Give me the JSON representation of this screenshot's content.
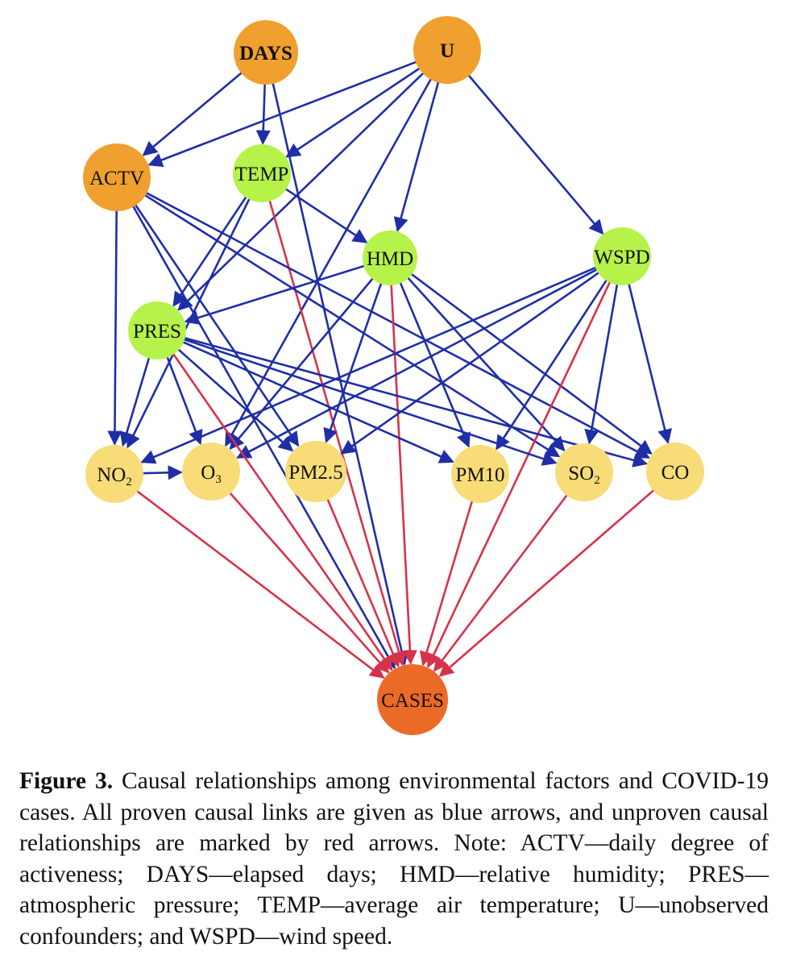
{
  "nodes": [
    {
      "id": "DAYS",
      "label": "DAYS",
      "fill": "#F0A02E",
      "bold": true
    },
    {
      "id": "U",
      "label": "U",
      "fill": "#F0A02E",
      "bold": true
    },
    {
      "id": "ACTV",
      "label": "ACTV",
      "fill": "#F0A02E",
      "bold": false
    },
    {
      "id": "TEMP",
      "label": "TEMP",
      "fill": "#B6F24A",
      "bold": false
    },
    {
      "id": "HMD",
      "label": "HMD",
      "fill": "#B6F24A",
      "bold": false
    },
    {
      "id": "WSPD",
      "label": "WSPD",
      "fill": "#B6F24A",
      "bold": false
    },
    {
      "id": "PRES",
      "label": "PRES",
      "fill": "#B6F24A",
      "bold": false
    },
    {
      "id": "NO2",
      "label": "NO",
      "sub": "2",
      "fill": "#F8DC78",
      "bold": false
    },
    {
      "id": "O3",
      "label": "O",
      "sub": "3",
      "fill": "#F8DC78",
      "bold": false
    },
    {
      "id": "PM25",
      "label": "PM2.5",
      "fill": "#F8DC78",
      "bold": false
    },
    {
      "id": "PM10",
      "label": "PM10",
      "fill": "#F8DC78",
      "bold": false
    },
    {
      "id": "SO2",
      "label": "SO",
      "sub": "2",
      "fill": "#F8DC78",
      "bold": false
    },
    {
      "id": "CO",
      "label": "CO",
      "fill": "#F8DC78",
      "bold": false
    },
    {
      "id": "CASES",
      "label": "CASES",
      "fill": "#EC6A28",
      "bold": false
    }
  ],
  "edges": [
    {
      "from": "DAYS",
      "to": "ACTV",
      "type": "proven"
    },
    {
      "from": "DAYS",
      "to": "TEMP",
      "type": "proven"
    },
    {
      "from": "DAYS",
      "to": "CASES",
      "type": "proven"
    },
    {
      "from": "U",
      "to": "ACTV",
      "type": "proven"
    },
    {
      "from": "U",
      "to": "TEMP",
      "type": "proven"
    },
    {
      "from": "U",
      "to": "HMD",
      "type": "proven"
    },
    {
      "from": "U",
      "to": "WSPD",
      "type": "proven"
    },
    {
      "from": "U",
      "to": "PRES",
      "type": "proven"
    },
    {
      "from": "U",
      "to": "O3",
      "type": "proven"
    },
    {
      "from": "TEMP",
      "to": "HMD",
      "type": "proven"
    },
    {
      "from": "TEMP",
      "to": "PRES",
      "type": "proven"
    },
    {
      "from": "TEMP",
      "to": "NO2",
      "type": "proven"
    },
    {
      "from": "TEMP",
      "to": "CASES",
      "type": "unproven"
    },
    {
      "from": "ACTV",
      "to": "NO2",
      "type": "proven"
    },
    {
      "from": "ACTV",
      "to": "PM25",
      "type": "proven"
    },
    {
      "from": "ACTV",
      "to": "SO2",
      "type": "proven"
    },
    {
      "from": "ACTV",
      "to": "CO",
      "type": "proven"
    },
    {
      "from": "ACTV",
      "to": "CASES",
      "type": "proven"
    },
    {
      "from": "HMD",
      "to": "PRES",
      "type": "proven"
    },
    {
      "from": "HMD",
      "to": "O3",
      "type": "proven"
    },
    {
      "from": "HMD",
      "to": "PM25",
      "type": "proven"
    },
    {
      "from": "HMD",
      "to": "PM10",
      "type": "proven"
    },
    {
      "from": "HMD",
      "to": "SO2",
      "type": "proven"
    },
    {
      "from": "HMD",
      "to": "CO",
      "type": "proven"
    },
    {
      "from": "HMD",
      "to": "CASES",
      "type": "unproven"
    },
    {
      "from": "WSPD",
      "to": "NO2",
      "type": "proven"
    },
    {
      "from": "WSPD",
      "to": "O3",
      "type": "proven"
    },
    {
      "from": "WSPD",
      "to": "PM25",
      "type": "proven"
    },
    {
      "from": "WSPD",
      "to": "PM10",
      "type": "proven"
    },
    {
      "from": "WSPD",
      "to": "SO2",
      "type": "proven"
    },
    {
      "from": "WSPD",
      "to": "CO",
      "type": "proven"
    },
    {
      "from": "WSPD",
      "to": "CASES",
      "type": "unproven"
    },
    {
      "from": "PRES",
      "to": "NO2",
      "type": "proven"
    },
    {
      "from": "PRES",
      "to": "O3",
      "type": "proven"
    },
    {
      "from": "PRES",
      "to": "PM25",
      "type": "proven"
    },
    {
      "from": "PRES",
      "to": "PM10",
      "type": "proven"
    },
    {
      "from": "PRES",
      "to": "SO2",
      "type": "proven"
    },
    {
      "from": "PRES",
      "to": "CO",
      "type": "proven"
    },
    {
      "from": "PRES",
      "to": "CASES",
      "type": "unproven"
    },
    {
      "from": "NO2",
      "to": "O3",
      "type": "proven"
    },
    {
      "from": "NO2",
      "to": "CASES",
      "type": "unproven"
    },
    {
      "from": "O3",
      "to": "CASES",
      "type": "unproven"
    },
    {
      "from": "PM25",
      "to": "CASES",
      "type": "unproven"
    },
    {
      "from": "PM10",
      "to": "CASES",
      "type": "unproven"
    },
    {
      "from": "SO2",
      "to": "CASES",
      "type": "unproven"
    },
    {
      "from": "CO",
      "to": "CASES",
      "type": "unproven"
    }
  ],
  "colors": {
    "proven": "#1F2EA6",
    "unproven": "#D6334A"
  },
  "caption": {
    "label": "Figure 3.",
    "text": "Causal relationships among environmental factors and COVID-19 cases. All proven causal links are given as blue arrows, and unproven causal relationships are marked by red arrows. Note: ACTV—daily degree of activeness; DAYS—elapsed days; HMD—relative humidity; PRES—atmospheric pressure; TEMP—average air temperature; U—unobserved confounders; and WSPD—wind speed."
  }
}
